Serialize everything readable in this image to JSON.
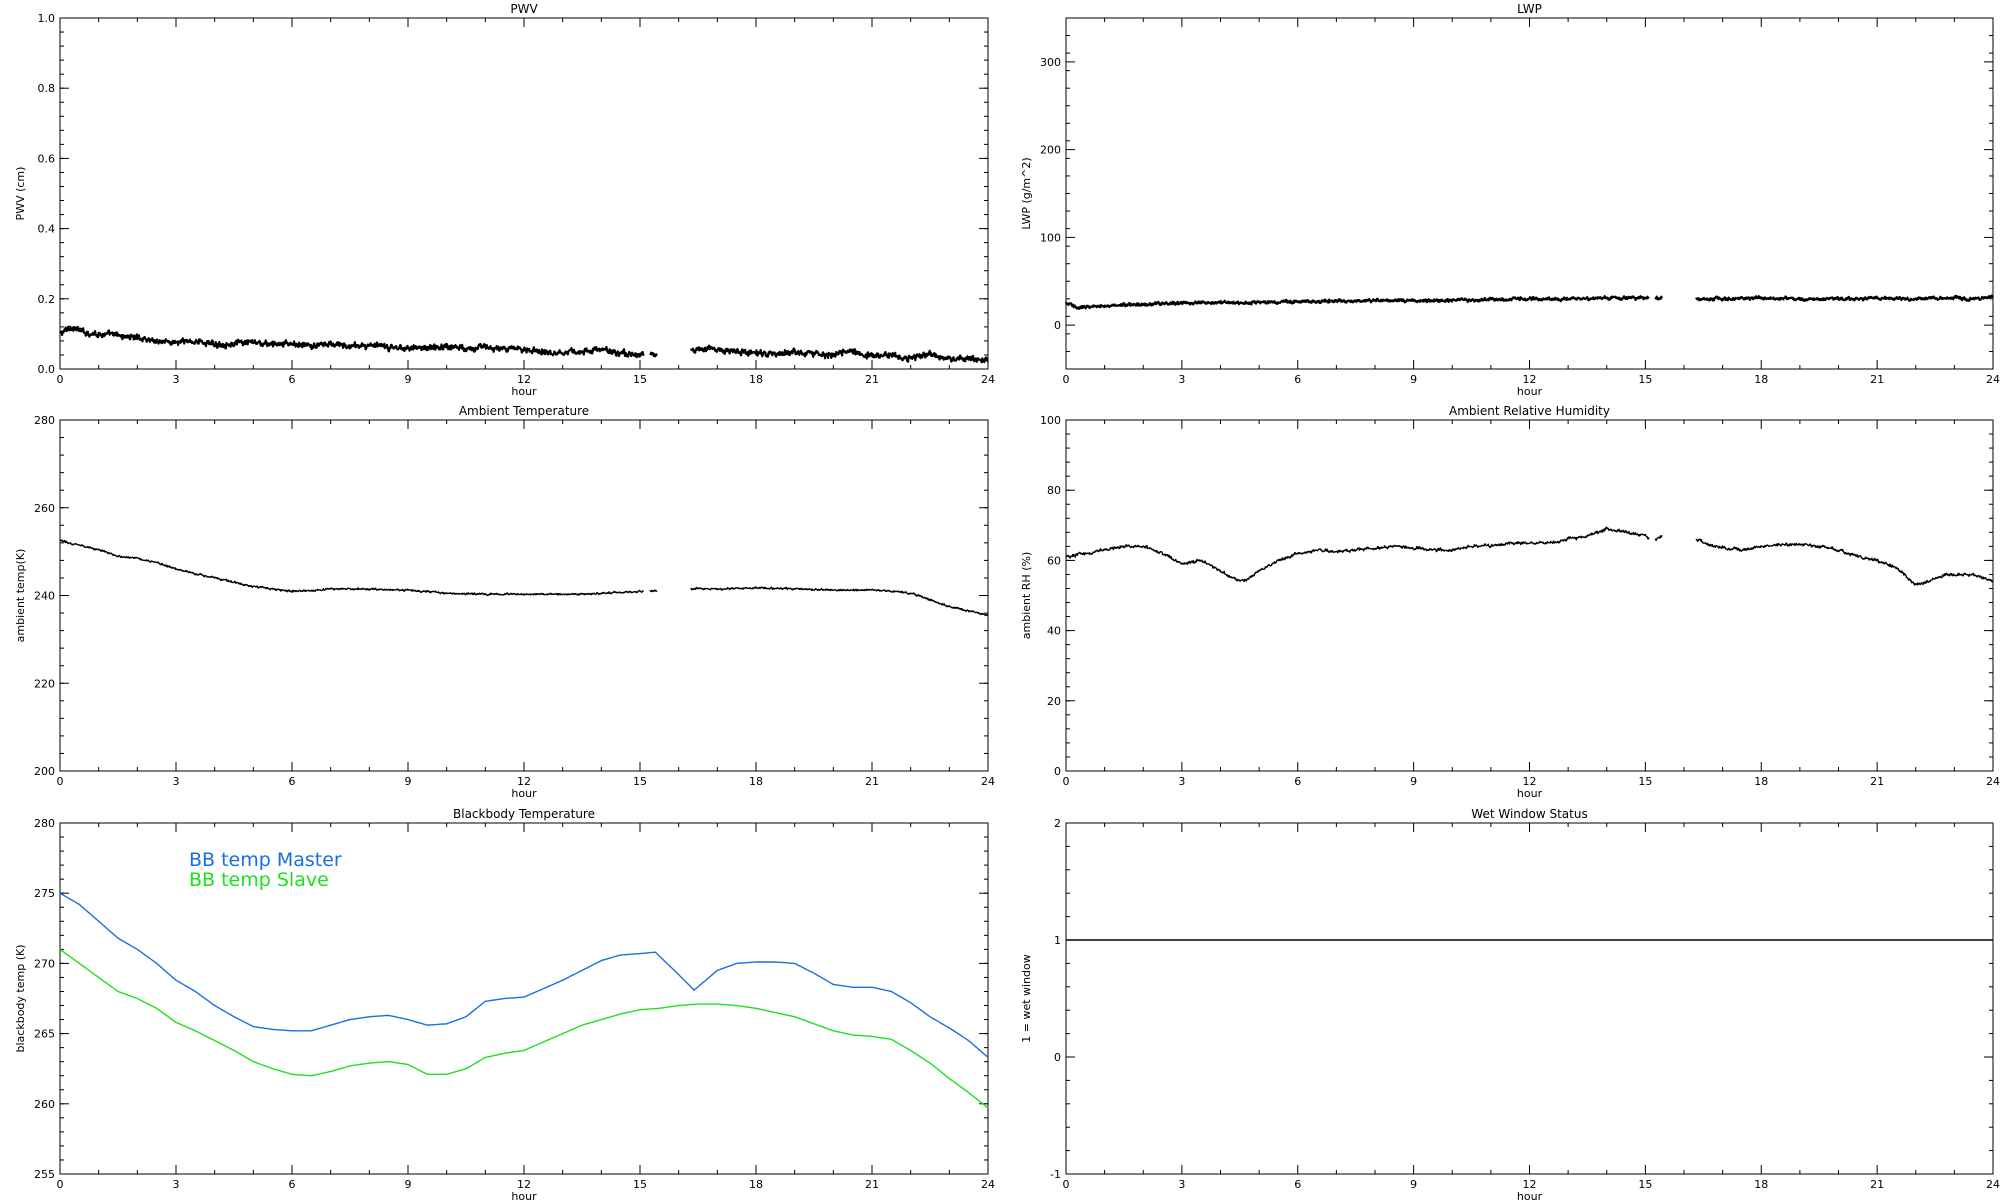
{
  "chart_data": [
    {
      "type": "line",
      "title": "PWV",
      "xlabel": "hour",
      "ylabel": "PWV (cm)",
      "xlim": [
        0,
        24
      ],
      "ylim": [
        0.0,
        1.0
      ],
      "xticks": [
        "0",
        "3",
        "6",
        "9",
        "12",
        "15",
        "18",
        "21",
        "24"
      ],
      "yticks": [
        "0.0",
        "0.2",
        "0.4",
        "0.6",
        "0.8",
        "1.0"
      ],
      "noise": 0.012,
      "gaps": [
        [
          15.1,
          15.25
        ],
        [
          15.45,
          16.3
        ]
      ],
      "series": [
        {
          "color": "#000000",
          "x": [
            0,
            0.3,
            0.6,
            1,
            1.5,
            2,
            2.5,
            3,
            3.5,
            4,
            4.5,
            5,
            5.5,
            6,
            6.5,
            7,
            7.5,
            8,
            8.5,
            9,
            9.5,
            10,
            10.5,
            11,
            11.5,
            12,
            12.5,
            13,
            13.5,
            14,
            14.5,
            15,
            15.1,
            15.25,
            15.45,
            16.3,
            16.6,
            17,
            17.5,
            18,
            18.5,
            19,
            19.5,
            20,
            20.5,
            21,
            21.5,
            22,
            22.5,
            23,
            23.5,
            24
          ],
          "y": [
            0.1,
            0.12,
            0.105,
            0.1,
            0.095,
            0.09,
            0.08,
            0.075,
            0.08,
            0.07,
            0.072,
            0.075,
            0.07,
            0.072,
            0.065,
            0.07,
            0.065,
            0.068,
            0.06,
            0.062,
            0.06,
            0.065,
            0.06,
            0.063,
            0.055,
            0.058,
            0.05,
            0.048,
            0.05,
            0.055,
            0.045,
            0.04,
            0.042,
            0.042,
            0.04,
            0.05,
            0.06,
            0.055,
            0.05,
            0.045,
            0.04,
            0.05,
            0.045,
            0.04,
            0.05,
            0.035,
            0.04,
            0.03,
            0.045,
            0.025,
            0.03,
            0.025
          ]
        }
      ]
    },
    {
      "type": "line",
      "title": "LWP",
      "xlabel": "hour",
      "ylabel": "LWP (g/m^2)",
      "xlim": [
        0,
        24
      ],
      "ylim": [
        -50,
        350
      ],
      "xticks": [
        "0",
        "3",
        "6",
        "9",
        "12",
        "15",
        "18",
        "21",
        "24"
      ],
      "yticks": [
        "0",
        "100",
        "200",
        "300"
      ],
      "ytick_values": [
        0,
        100,
        200,
        300
      ],
      "noise": 2.5,
      "gaps": [
        [
          15.1,
          15.25
        ],
        [
          15.45,
          16.3
        ]
      ],
      "series": [
        {
          "color": "#000000",
          "x": [
            0,
            0.3,
            0.6,
            1,
            2,
            3,
            4,
            5,
            6,
            7,
            8,
            9,
            10,
            11,
            12,
            13,
            14,
            15,
            15.1,
            15.25,
            15.45,
            16.3,
            17,
            18,
            19,
            20,
            21,
            22,
            23,
            23.5,
            24
          ],
          "y": [
            25,
            20,
            21,
            22,
            24,
            25,
            26,
            26,
            27,
            27,
            28,
            28,
            28,
            29,
            30,
            30,
            31,
            31,
            31,
            31,
            31,
            30,
            30,
            31,
            30,
            30,
            31,
            30,
            31,
            30,
            32
          ]
        }
      ]
    },
    {
      "type": "line",
      "title": "Ambient Temperature",
      "xlabel": "hour",
      "ylabel": "ambient temp(K)",
      "xlim": [
        0,
        24
      ],
      "ylim": [
        200,
        280
      ],
      "xticks": [
        "0",
        "3",
        "6",
        "9",
        "12",
        "15",
        "18",
        "21",
        "24"
      ],
      "yticks": [
        "200",
        "220",
        "240",
        "260",
        "280"
      ],
      "noise": 0.3,
      "gaps": [
        [
          15.1,
          15.25
        ],
        [
          15.45,
          16.3
        ]
      ],
      "series": [
        {
          "color": "#000000",
          "x": [
            0,
            0.5,
            1,
            1.5,
            2,
            2.5,
            3,
            3.5,
            4,
            4.5,
            5,
            5.5,
            6,
            6.5,
            7,
            8,
            9,
            10,
            11,
            12,
            13,
            14,
            15,
            15.1,
            15.25,
            15.45,
            16.3,
            17,
            18,
            19,
            20,
            21,
            21.5,
            22,
            22.5,
            23,
            23.5,
            24
          ],
          "y": [
            252.5,
            251.5,
            250.5,
            249,
            248.5,
            247.5,
            246,
            245,
            244,
            243,
            242,
            241.5,
            241,
            241,
            241.5,
            241.5,
            241.2,
            240.5,
            240.3,
            240.3,
            240.3,
            240.5,
            241,
            241,
            241,
            241,
            241.5,
            241.5,
            241.7,
            241.5,
            241.2,
            241.3,
            241,
            240.5,
            239,
            237.5,
            236.5,
            235.5
          ]
        }
      ]
    },
    {
      "type": "line",
      "title": "Ambient Relative Humidity",
      "xlabel": "hour",
      "ylabel": "ambient RH (%)",
      "xlim": [
        0,
        24
      ],
      "ylim": [
        0,
        100
      ],
      "xticks": [
        "0",
        "3",
        "6",
        "9",
        "12",
        "15",
        "18",
        "21",
        "24"
      ],
      "yticks": [
        "0",
        "20",
        "40",
        "60",
        "80",
        "100"
      ],
      "noise": 0.6,
      "gaps": [
        [
          15.1,
          15.25
        ],
        [
          15.45,
          16.3
        ]
      ],
      "series": [
        {
          "color": "#000000",
          "x": [
            0,
            0.5,
            1,
            1.5,
            2,
            2.5,
            3,
            3.5,
            4,
            4.3,
            4.6,
            5,
            5.5,
            6,
            6.5,
            7,
            7.5,
            8,
            8.5,
            9,
            9.5,
            10,
            10.5,
            11,
            11.5,
            12,
            12.5,
            13,
            13.5,
            14,
            14.5,
            15,
            15.1,
            15.25,
            15.45,
            16.3,
            16.8,
            17.5,
            18,
            18.5,
            19,
            19.5,
            20,
            20.5,
            21,
            21.5,
            21.8,
            22,
            22.3,
            22.8,
            23.5,
            24
          ],
          "y": [
            61,
            62,
            63,
            64,
            64,
            62,
            59,
            60,
            57,
            55,
            54,
            57,
            60,
            62,
            63,
            62.5,
            63,
            63.5,
            64,
            63.5,
            63,
            63,
            64,
            64,
            65,
            65,
            65,
            66,
            67,
            69,
            68,
            67,
            66,
            66,
            67,
            66,
            64,
            63,
            64,
            64.5,
            64.5,
            64,
            63,
            61,
            60,
            58,
            55,
            53,
            54,
            56,
            56,
            54
          ]
        }
      ]
    },
    {
      "type": "line",
      "title": "Blackbody Temperature",
      "xlabel": "hour",
      "ylabel": "blackbody temp (K)",
      "xlim": [
        0,
        24
      ],
      "ylim": [
        255,
        280
      ],
      "xticks": [
        "0",
        "3",
        "6",
        "9",
        "12",
        "15",
        "18",
        "21",
        "24"
      ],
      "yticks": [
        "255",
        "260",
        "265",
        "270",
        "275",
        "280"
      ],
      "legend": "upper-left",
      "noise": 0,
      "series": [
        {
          "name": "BB temp Master",
          "color": "#1a6fe0",
          "x": [
            0,
            0.5,
            1,
            1.5,
            2,
            2.5,
            3,
            3.5,
            4,
            4.5,
            5,
            5.5,
            6,
            6.5,
            7,
            7.5,
            8,
            8.5,
            9,
            9.5,
            10,
            10.5,
            11,
            11.5,
            12,
            12.5,
            13,
            13.5,
            14,
            14.5,
            15,
            15.4,
            16,
            16.4,
            17,
            17.5,
            18,
            18.5,
            19,
            19.5,
            20,
            20.5,
            21,
            21.5,
            22,
            22.5,
            23,
            23.5,
            24
          ],
          "y": [
            275,
            274.2,
            273,
            271.8,
            271,
            270,
            268.8,
            268,
            267,
            266.2,
            265.5,
            265.3,
            265.2,
            265.2,
            265.6,
            266,
            266.2,
            266.3,
            266,
            265.6,
            265.7,
            266.2,
            267.3,
            267.5,
            267.6,
            268.2,
            268.8,
            269.5,
            270.2,
            270.6,
            270.7,
            270.8,
            269.2,
            268.1,
            269.5,
            270,
            270.1,
            270.1,
            270,
            269.3,
            268.5,
            268.3,
            268.3,
            268,
            267.2,
            266.2,
            265.4,
            264.5,
            263.3
          ]
        },
        {
          "name": "BB temp Slave",
          "color": "#1fe01f",
          "x": [
            0,
            0.5,
            1,
            1.5,
            2,
            2.5,
            3,
            3.5,
            4,
            4.5,
            5,
            5.5,
            6,
            6.5,
            7,
            7.5,
            8,
            8.5,
            9,
            9.5,
            10,
            10.5,
            11,
            11.5,
            12,
            12.5,
            13,
            13.5,
            14,
            14.5,
            15,
            15.5,
            16,
            16.5,
            17,
            17.5,
            18,
            18.5,
            19,
            19.5,
            20,
            20.5,
            21,
            21.5,
            22,
            22.5,
            23,
            23.5,
            24
          ],
          "y": [
            271,
            270,
            269,
            268,
            267.5,
            266.8,
            265.8,
            265.2,
            264.5,
            263.8,
            263,
            262.5,
            262.1,
            262,
            262.3,
            262.7,
            262.9,
            263,
            262.8,
            262.1,
            262.1,
            262.5,
            263.3,
            263.6,
            263.8,
            264.4,
            265,
            265.6,
            266,
            266.4,
            266.7,
            266.8,
            267,
            267.1,
            267.1,
            267,
            266.8,
            266.5,
            266.2,
            265.7,
            265.2,
            264.9,
            264.8,
            264.6,
            263.8,
            262.9,
            261.8,
            260.8,
            259.7
          ]
        }
      ]
    },
    {
      "type": "line",
      "title": "Wet Window Status",
      "xlabel": "hour",
      "ylabel": "1 = wet window",
      "xlim": [
        0,
        24
      ],
      "ylim": [
        -1,
        2
      ],
      "xticks": [
        "0",
        "3",
        "6",
        "9",
        "12",
        "15",
        "18",
        "21",
        "24"
      ],
      "yticks": [
        "-1",
        "0",
        "1",
        "2"
      ],
      "noise": 0,
      "series": [
        {
          "color": "#000000",
          "x": [
            0,
            24
          ],
          "y": [
            1,
            1
          ]
        }
      ]
    }
  ]
}
